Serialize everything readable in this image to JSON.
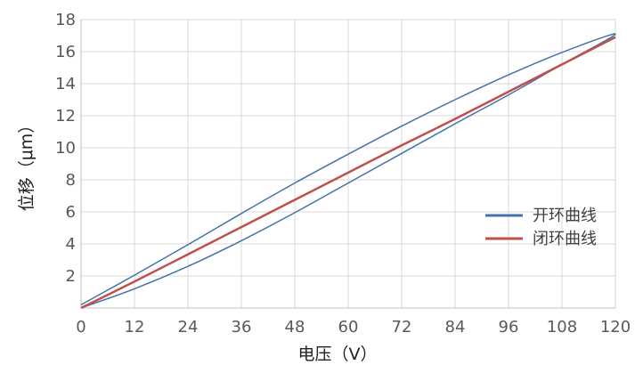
{
  "chart_data": {
    "type": "line",
    "xlabel": "电压（V）",
    "ylabel": "位移（μm）",
    "xlim": [
      0,
      120
    ],
    "ylim": [
      0,
      18
    ],
    "x_ticks": [
      0,
      12,
      24,
      36,
      48,
      60,
      72,
      84,
      96,
      108,
      120
    ],
    "y_ticks": [
      2,
      4,
      6,
      8,
      10,
      12,
      14,
      16,
      18
    ],
    "grid": true,
    "legend_position": "right-middle",
    "series": [
      {
        "name": "开环曲线",
        "color": "#4472a8",
        "x": [
          0,
          12,
          24,
          36,
          48,
          60,
          72,
          84,
          96,
          108,
          120,
          108,
          96,
          84,
          72,
          60,
          48,
          36,
          24,
          12,
          0
        ],
        "y": [
          0.0,
          1.2,
          2.6,
          4.2,
          5.95,
          7.8,
          9.65,
          11.5,
          13.3,
          15.2,
          17.1,
          15.95,
          14.55,
          13.0,
          11.35,
          9.6,
          7.8,
          5.9,
          3.95,
          2.05,
          0.2
        ]
      },
      {
        "name": "闭环曲线",
        "color": "#c0504d",
        "x": [
          0,
          12,
          24,
          36,
          48,
          60,
          72,
          84,
          96,
          108,
          120
        ],
        "y": [
          0.0,
          1.65,
          3.35,
          5.05,
          6.75,
          8.45,
          10.15,
          11.8,
          13.5,
          15.2,
          16.9
        ]
      }
    ]
  }
}
